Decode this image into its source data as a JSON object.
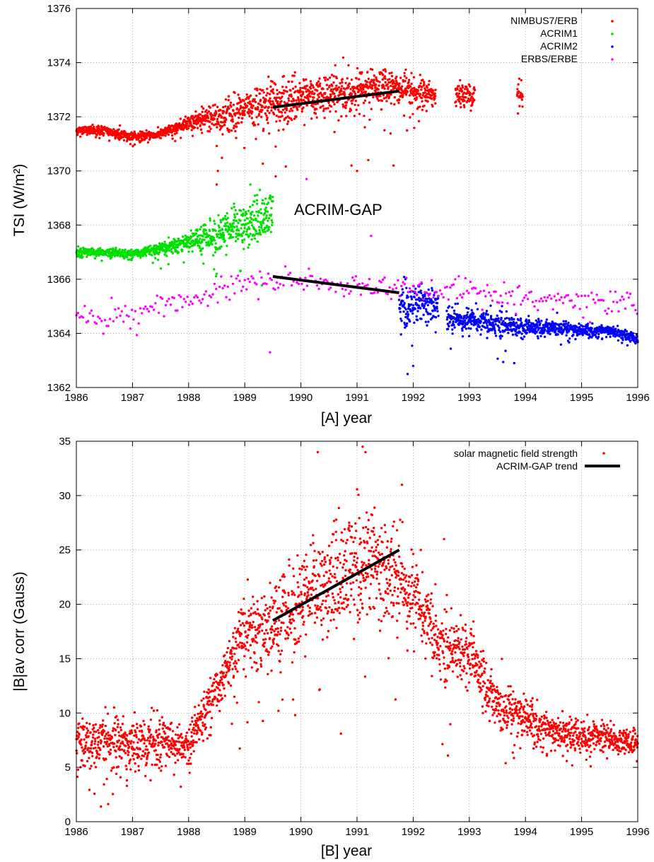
{
  "chart_data": [
    {
      "type": "scatter",
      "panel": "A",
      "xlabel": "[A]   year",
      "ylabel": "TSI  (W/m²)",
      "xlim": [
        1986,
        1996
      ],
      "ylim": [
        1362,
        1376
      ],
      "xticks": [
        1986,
        1987,
        1988,
        1989,
        1990,
        1991,
        1992,
        1993,
        1994,
        1995,
        1996
      ],
      "yticks": [
        1362,
        1364,
        1366,
        1368,
        1370,
        1372,
        1374,
        1376
      ],
      "grid": true,
      "legend_position": "top-right",
      "annotations": [
        {
          "text": "ACRIM-GAP",
          "x": 1989.85,
          "y": 1368.5
        }
      ],
      "series": [
        {
          "name": "NIMBUS7/ERB",
          "color": "#ff0000",
          "trend": [
            {
              "x": 1986.0,
              "y": 1371.5,
              "spread": 0.15
            },
            {
              "x": 1986.5,
              "y": 1371.5,
              "spread": 0.15
            },
            {
              "x": 1987.0,
              "y": 1371.25,
              "spread": 0.15
            },
            {
              "x": 1987.5,
              "y": 1371.35,
              "spread": 0.15
            },
            {
              "x": 1988.0,
              "y": 1371.8,
              "spread": 0.2
            },
            {
              "x": 1988.5,
              "y": 1372.0,
              "spread": 0.5
            },
            {
              "x": 1989.0,
              "y": 1372.2,
              "spread": 0.7
            },
            {
              "x": 1989.5,
              "y": 1372.5,
              "spread": 0.8
            },
            {
              "x": 1990.0,
              "y": 1372.7,
              "spread": 0.7
            },
            {
              "x": 1990.5,
              "y": 1372.8,
              "spread": 0.7
            },
            {
              "x": 1991.0,
              "y": 1373.0,
              "spread": 0.7
            },
            {
              "x": 1991.5,
              "y": 1373.1,
              "spread": 0.6
            },
            {
              "x": 1992.0,
              "y": 1372.9,
              "spread": 0.5
            },
            {
              "x": 1992.4,
              "y": 1372.8,
              "spread": 0.4
            }
          ],
          "segments": [
            [
              1986.0,
              1992.4
            ],
            [
              1992.75,
              1993.1
            ],
            [
              1993.85,
              1993.95
            ]
          ],
          "extra_points": [
            {
              "x": 1988.5,
              "y": 1369.5
            },
            {
              "x": 1988.52,
              "y": 1370.0
            },
            {
              "x": 1989.55,
              "y": 1369.8
            },
            {
              "x": 1989.55,
              "y": 1370.9
            },
            {
              "x": 1990.9,
              "y": 1370.2
            },
            {
              "x": 1991.0,
              "y": 1370.0
            },
            {
              "x": 1991.2,
              "y": 1370.4
            },
            {
              "x": 1991.65,
              "y": 1370.2
            }
          ]
        },
        {
          "name": "ACRIM1",
          "color": "#00e000",
          "trend": [
            {
              "x": 1986.0,
              "y": 1367.0,
              "spread": 0.15
            },
            {
              "x": 1986.5,
              "y": 1367.0,
              "spread": 0.15
            },
            {
              "x": 1987.0,
              "y": 1366.95,
              "spread": 0.15
            },
            {
              "x": 1987.5,
              "y": 1367.1,
              "spread": 0.2
            },
            {
              "x": 1988.0,
              "y": 1367.4,
              "spread": 0.3
            },
            {
              "x": 1988.5,
              "y": 1367.6,
              "spread": 0.6
            },
            {
              "x": 1989.0,
              "y": 1368.0,
              "spread": 0.8
            },
            {
              "x": 1989.5,
              "y": 1368.4,
              "spread": 0.8
            }
          ],
          "segments": [
            [
              1986.0,
              1989.5
            ]
          ],
          "extra_points": [
            {
              "x": 1988.5,
              "y": 1366.2
            },
            {
              "x": 1989.1,
              "y": 1369.5
            }
          ]
        },
        {
          "name": "ACRIM2",
          "color": "#0000ff",
          "trend": [
            {
              "x": 1991.75,
              "y": 1365.0,
              "spread": 0.8
            },
            {
              "x": 1992.0,
              "y": 1365.0,
              "spread": 0.7
            },
            {
              "x": 1992.4,
              "y": 1365.1,
              "spread": 0.6
            },
            {
              "x": 1992.6,
              "y": 1364.5,
              "spread": 0.4
            },
            {
              "x": 1993.0,
              "y": 1364.5,
              "spread": 0.4
            },
            {
              "x": 1993.5,
              "y": 1364.4,
              "spread": 0.4
            },
            {
              "x": 1994.0,
              "y": 1364.2,
              "spread": 0.3
            },
            {
              "x": 1994.5,
              "y": 1364.2,
              "spread": 0.25
            },
            {
              "x": 1995.0,
              "y": 1364.1,
              "spread": 0.2
            },
            {
              "x": 1995.5,
              "y": 1364.1,
              "spread": 0.2
            },
            {
              "x": 1996.0,
              "y": 1363.8,
              "spread": 0.15
            }
          ],
          "segments": [
            [
              1991.75,
              1992.45
            ],
            [
              1992.6,
              1996.0
            ]
          ],
          "extra_points": [
            {
              "x": 1991.9,
              "y": 1362.5
            },
            {
              "x": 1992.0,
              "y": 1362.8
            },
            {
              "x": 1993.8,
              "y": 1362.9
            }
          ]
        },
        {
          "name": "ERBS/ERBE",
          "color": "#ff00ff",
          "trend": [
            {
              "x": 1986.0,
              "y": 1364.6,
              "spread": 0.4
            },
            {
              "x": 1987.0,
              "y": 1364.8,
              "spread": 0.4
            },
            {
              "x": 1988.0,
              "y": 1365.2,
              "spread": 0.4
            },
            {
              "x": 1989.0,
              "y": 1365.9,
              "spread": 0.4
            },
            {
              "x": 1990.0,
              "y": 1366.0,
              "spread": 0.4
            },
            {
              "x": 1991.0,
              "y": 1365.8,
              "spread": 0.4
            },
            {
              "x": 1992.0,
              "y": 1365.6,
              "spread": 0.4
            },
            {
              "x": 1993.0,
              "y": 1365.5,
              "spread": 0.4
            },
            {
              "x": 1994.0,
              "y": 1365.3,
              "spread": 0.4
            },
            {
              "x": 1995.0,
              "y": 1365.2,
              "spread": 0.4
            },
            {
              "x": 1996.0,
              "y": 1365.2,
              "spread": 0.4
            }
          ],
          "segments": [
            [
              1986.0,
              1996.0
            ]
          ],
          "extra_points": [
            {
              "x": 1989.45,
              "y": 1363.3
            },
            {
              "x": 1990.1,
              "y": 1369.7
            },
            {
              "x": 1991.25,
              "y": 1367.6
            }
          ]
        }
      ],
      "trend_lines": [
        {
          "color": "#000000",
          "x": [
            1989.5,
            1991.75
          ],
          "y": [
            1372.35,
            1372.95
          ]
        },
        {
          "color": "#000000",
          "x": [
            1989.5,
            1991.75
          ],
          "y": [
            1366.1,
            1365.5
          ]
        }
      ]
    },
    {
      "type": "scatter",
      "panel": "B",
      "xlabel": "[B]   year",
      "ylabel": "|B|av corr (Gauss)",
      "xlim": [
        1986,
        1996
      ],
      "ylim": [
        0,
        35
      ],
      "xticks": [
        1986,
        1987,
        1988,
        1989,
        1990,
        1991,
        1992,
        1993,
        1994,
        1995,
        1996
      ],
      "yticks": [
        0,
        5,
        10,
        15,
        20,
        25,
        30,
        35
      ],
      "grid": true,
      "legend_position": "top-right",
      "series": [
        {
          "name": "solar magnetic field strength",
          "color": "#ff0000",
          "trend": [
            {
              "x": 1986.0,
              "y": 7.0,
              "spread": 2.0
            },
            {
              "x": 1986.5,
              "y": 7.5,
              "spread": 2.2
            },
            {
              "x": 1987.0,
              "y": 7.0,
              "spread": 2.2
            },
            {
              "x": 1987.5,
              "y": 7.5,
              "spread": 2.0
            },
            {
              "x": 1988.0,
              "y": 7.0,
              "spread": 1.8
            },
            {
              "x": 1988.3,
              "y": 10.5,
              "spread": 2.0
            },
            {
              "x": 1988.7,
              "y": 14.0,
              "spread": 2.2
            },
            {
              "x": 1989.0,
              "y": 17.5,
              "spread": 3.0
            },
            {
              "x": 1989.5,
              "y": 18.0,
              "spread": 3.5
            },
            {
              "x": 1990.0,
              "y": 20.0,
              "spread": 4.0
            },
            {
              "x": 1990.5,
              "y": 22.0,
              "spread": 4.5
            },
            {
              "x": 1991.0,
              "y": 23.5,
              "spread": 5.0
            },
            {
              "x": 1991.5,
              "y": 23.0,
              "spread": 4.5
            },
            {
              "x": 1992.0,
              "y": 21.0,
              "spread": 3.5
            },
            {
              "x": 1992.5,
              "y": 16.5,
              "spread": 2.8
            },
            {
              "x": 1993.0,
              "y": 15.5,
              "spread": 2.5
            },
            {
              "x": 1993.5,
              "y": 10.5,
              "spread": 2.0
            },
            {
              "x": 1994.0,
              "y": 9.5,
              "spread": 1.8
            },
            {
              "x": 1994.5,
              "y": 8.2,
              "spread": 1.5
            },
            {
              "x": 1995.0,
              "y": 8.0,
              "spread": 1.3
            },
            {
              "x": 1995.5,
              "y": 7.8,
              "spread": 1.2
            },
            {
              "x": 1996.0,
              "y": 7.0,
              "spread": 1.0
            }
          ],
          "segments": [
            [
              1986.0,
              1996.0
            ]
          ],
          "extra_points": [
            {
              "x": 1990.3,
              "y": 34.0
            },
            {
              "x": 1991.1,
              "y": 34.5
            },
            {
              "x": 1991.15,
              "y": 34.0
            },
            {
              "x": 1989.6,
              "y": 10.2
            },
            {
              "x": 1989.25,
              "y": 11.0
            },
            {
              "x": 1986.9,
              "y": 3.3
            },
            {
              "x": 1986.9,
              "y": 3.8
            },
            {
              "x": 1991.8,
              "y": 31.0
            },
            {
              "x": 1992.55,
              "y": 26.0
            }
          ]
        }
      ],
      "trend_lines": [
        {
          "name": "ACRIM-GAP trend",
          "color": "#000000",
          "x": [
            1989.5,
            1991.75
          ],
          "y": [
            18.5,
            25.0
          ]
        }
      ]
    }
  ]
}
